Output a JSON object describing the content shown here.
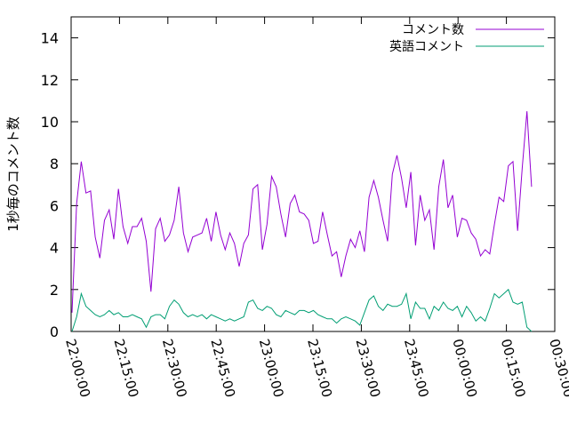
{
  "chart_data": {
    "type": "line",
    "title": "",
    "xlabel": "",
    "ylabel": "1秒毎のコメント数",
    "ylim": [
      0,
      15
    ],
    "yticks": [
      "0",
      "2",
      "4",
      "6",
      "8",
      "10",
      "12",
      "14"
    ],
    "xlim": [
      "22:00:00",
      "00:30:00"
    ],
    "xticks": [
      "22:00:00",
      "22:15:00",
      "22:30:00",
      "22:45:00",
      "23:00:00",
      "23:15:00",
      "23:30:00",
      "23:45:00",
      "00:00:00",
      "00:15:00",
      "00:30:00"
    ],
    "grid": false,
    "legend_position": "top-right",
    "series": [
      {
        "name": "コメント数",
        "color": "#9400d3",
        "values": [
          0.9,
          6.1,
          8.1,
          6.6,
          6.7,
          4.5,
          3.5,
          5.3,
          5.8,
          4.4,
          6.8,
          5.0,
          4.2,
          5.0,
          5.0,
          5.4,
          4.3,
          1.9,
          4.9,
          5.4,
          4.3,
          4.6,
          5.3,
          6.9,
          4.7,
          3.8,
          4.5,
          4.6,
          4.7,
          5.4,
          4.3,
          5.7,
          4.6,
          3.9,
          4.7,
          4.2,
          3.1,
          4.2,
          4.6,
          6.8,
          7.0,
          3.9,
          5.1,
          7.4,
          6.9,
          5.6,
          4.5,
          6.1,
          6.5,
          5.7,
          5.6,
          5.3,
          4.2,
          4.3,
          5.7,
          4.6,
          3.6,
          3.8,
          2.6,
          3.6,
          4.4,
          4.0,
          4.8,
          3.8,
          6.4,
          7.2,
          6.4,
          5.3,
          4.3,
          7.5,
          8.4,
          7.3,
          5.9,
          7.6,
          4.1,
          6.5,
          5.3,
          5.8,
          3.9,
          6.9,
          8.2,
          5.9,
          6.5,
          4.5,
          5.4,
          5.3,
          4.7,
          4.4,
          3.6,
          3.9,
          3.7,
          5.1,
          6.4,
          6.2,
          7.9,
          8.1,
          4.8,
          7.8,
          10.5,
          6.9
        ]
      },
      {
        "name": "英語コメント",
        "color": "#009e73",
        "values": [
          0.0,
          0.7,
          1.8,
          1.2,
          1.0,
          0.8,
          0.7,
          0.8,
          1.0,
          0.8,
          0.9,
          0.7,
          0.7,
          0.8,
          0.7,
          0.6,
          0.2,
          0.7,
          0.8,
          0.8,
          0.6,
          1.2,
          1.5,
          1.3,
          0.9,
          0.7,
          0.8,
          0.7,
          0.8,
          0.6,
          0.8,
          0.7,
          0.6,
          0.5,
          0.6,
          0.5,
          0.6,
          0.7,
          1.4,
          1.5,
          1.1,
          1.0,
          1.2,
          1.1,
          0.8,
          0.7,
          1.0,
          0.9,
          0.8,
          1.0,
          1.0,
          0.9,
          1.0,
          0.8,
          0.7,
          0.6,
          0.6,
          0.4,
          0.6,
          0.7,
          0.6,
          0.5,
          0.3,
          0.9,
          1.5,
          1.7,
          1.2,
          1.0,
          1.3,
          1.2,
          1.2,
          1.3,
          1.8,
          0.6,
          1.4,
          1.1,
          1.1,
          0.6,
          1.2,
          1.0,
          1.4,
          1.1,
          1.0,
          1.2,
          0.7,
          1.2,
          0.9,
          0.5,
          0.7,
          0.5,
          1.1,
          1.8,
          1.6,
          1.8,
          2.0,
          1.4,
          1.3,
          1.4,
          0.2,
          0.0
        ]
      }
    ]
  }
}
